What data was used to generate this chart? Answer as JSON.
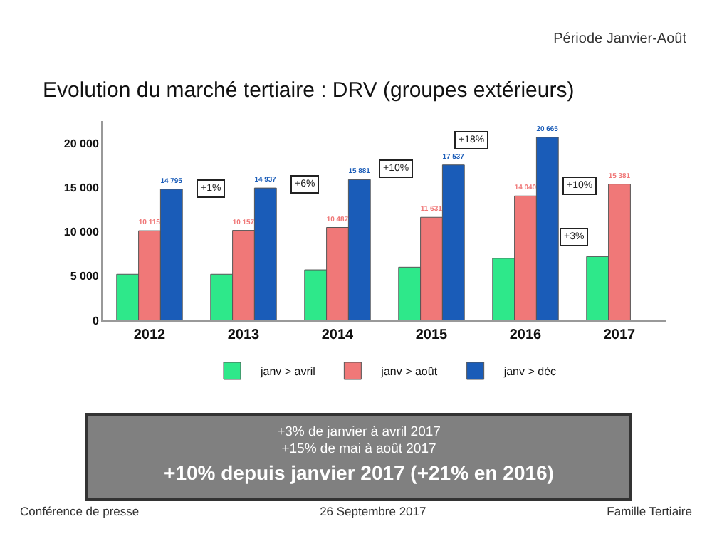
{
  "chart_data": {
    "type": "bar",
    "title": "Evolution du marché tertiaire : DRV (groupes extérieurs)",
    "subtitle": "Période Janvier-Août",
    "categories": [
      "2012",
      "2013",
      "2014",
      "2015",
      "2016",
      "2017"
    ],
    "series": [
      {
        "name": "janv > avril",
        "color": "#2ee88a",
        "values": [
          5200,
          5200,
          5700,
          6000,
          7000,
          7200
        ]
      },
      {
        "name": "janv > août",
        "color": "#f07878",
        "values": [
          10115,
          10157,
          10487,
          11631,
          14040,
          15381
        ],
        "value_labels": [
          "10 115",
          "10 157",
          "10 487",
          "11 631",
          "14 040",
          "15 381"
        ]
      },
      {
        "name": "janv > déc",
        "color": "#1a5cb8",
        "values": [
          14795,
          14937,
          15881,
          17537,
          20665,
          null
        ],
        "value_labels": [
          "14 795",
          "14 937",
          "15 881",
          "17 537",
          "20 665",
          null
        ]
      }
    ],
    "ylim": [
      0,
      22500
    ],
    "yticks": [
      0,
      {
        "value": 5000,
        "label": "5 000"
      },
      {
        "value": 10000,
        "label": "10 000"
      },
      {
        "value": 15000,
        "label": "15 000"
      },
      {
        "value": 20000,
        "label": "20 000"
      }
    ],
    "grid": false,
    "legend": "bottom",
    "annotations": [
      "+1%",
      "+6%",
      "+10%",
      "+18%",
      "+10%",
      "+3%",
      "+3% de janvier à avril 2017",
      "+15% de mai à août 2017",
      "+10% depuis janvier 2017 (+21% en 2016)",
      "Conférence de presse",
      "26 Septembre 2017",
      "Famille Tertiaire"
    ]
  }
}
